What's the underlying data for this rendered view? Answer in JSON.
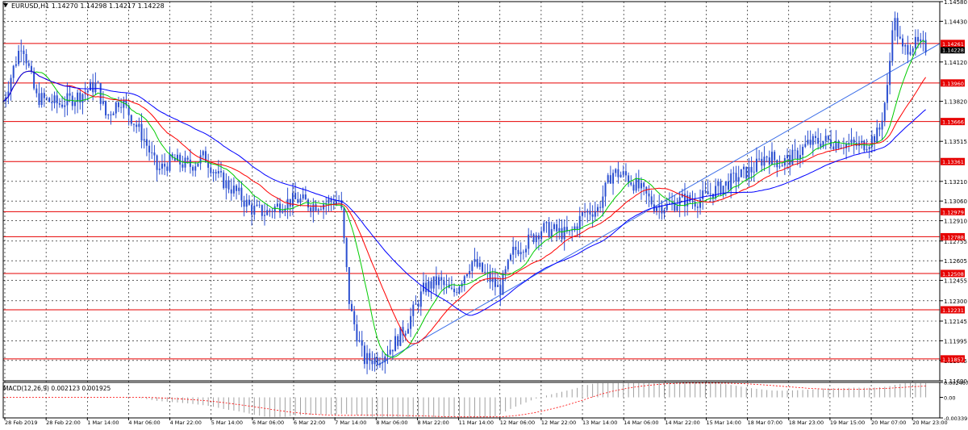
{
  "window": {
    "symbol_line": "EURUSD,H1  1.14270 1.14298 1.14217 1.14228"
  },
  "chart_data": {
    "type": "candlestick",
    "symbol": "EURUSD",
    "timeframe": "H1",
    "ohlc_readout": {
      "open": 1.1427,
      "high": 1.14298,
      "low": 1.14217,
      "close": 1.14228
    },
    "price_ticks": [
      "1.14580",
      "1.14430",
      "1.14120",
      "1.13820",
      "1.13515",
      "1.13210",
      "1.13060",
      "1.12910",
      "1.12755",
      "1.12605",
      "1.12455",
      "1.12300",
      "1.12145",
      "1.11995",
      "1.11845",
      "1.11690"
    ],
    "ylim": [
      1.1169,
      1.1458
    ],
    "time_labels": [
      "28 Feb 2019",
      "28 Feb 22:00",
      "1 Mar 14:00",
      "4 Mar 06:00",
      "4 Mar 22:00",
      "5 Mar 14:00",
      "6 Mar 06:00",
      "6 Mar 22:00",
      "7 Mar 14:00",
      "8 Mar 06:00",
      "8 Mar 22:00",
      "11 Mar 14:00",
      "12 Mar 06:00",
      "12 Mar 22:00",
      "13 Mar 14:00",
      "14 Mar 06:00",
      "14 Mar 22:00",
      "15 Mar 14:00",
      "18 Mar 07:00",
      "18 Mar 23:00",
      "19 Mar 15:00",
      "20 Mar 07:00",
      "20 Mar 23:00"
    ],
    "horizontal_levels": [
      {
        "value": 1.14261,
        "label": "1.14261"
      },
      {
        "value": 1.1396,
        "label": "1.13960"
      },
      {
        "value": 1.13666,
        "label": "1.13666"
      },
      {
        "value": 1.13361,
        "label": "1.13361"
      },
      {
        "value": 1.12979,
        "label": "1.12979"
      },
      {
        "value": 1.12788,
        "label": "1.12788"
      },
      {
        "value": 1.12508,
        "label": "1.12508"
      },
      {
        "value": 1.12231,
        "label": "1.12231"
      },
      {
        "value": 1.11857,
        "label": "1.11857"
      }
    ],
    "current_price_label": "1.14228",
    "trendline": [
      {
        "t": 0.4,
        "price": 1.1181
      },
      {
        "t": 1.0,
        "price": 1.1426
      }
    ],
    "price_path": [
      [
        0.0,
        1.1382
      ],
      [
        0.02,
        1.1428
      ],
      [
        0.035,
        1.1385
      ],
      [
        0.06,
        1.138
      ],
      [
        0.08,
        1.1386
      ],
      [
        0.1,
        1.1395
      ],
      [
        0.11,
        1.137
      ],
      [
        0.125,
        1.1384
      ],
      [
        0.15,
        1.1354
      ],
      [
        0.165,
        1.1329
      ],
      [
        0.18,
        1.1337
      ],
      [
        0.2,
        1.1333
      ],
      [
        0.215,
        1.134
      ],
      [
        0.23,
        1.1324
      ],
      [
        0.25,
        1.1312
      ],
      [
        0.265,
        1.13
      ],
      [
        0.28,
        1.1297
      ],
      [
        0.3,
        1.1305
      ],
      [
        0.315,
        1.1307
      ],
      [
        0.33,
        1.1303
      ],
      [
        0.345,
        1.1305
      ],
      [
        0.36,
        1.1307
      ],
      [
        0.37,
        1.1225
      ],
      [
        0.385,
        1.1185
      ],
      [
        0.4,
        1.1186
      ],
      [
        0.415,
        1.1195
      ],
      [
        0.43,
        1.121
      ],
      [
        0.45,
        1.124
      ],
      [
        0.465,
        1.1245
      ],
      [
        0.48,
        1.1235
      ],
      [
        0.5,
        1.126
      ],
      [
        0.515,
        1.125
      ],
      [
        0.53,
        1.1238
      ],
      [
        0.545,
        1.1268
      ],
      [
        0.56,
        1.1275
      ],
      [
        0.575,
        1.1285
      ],
      [
        0.59,
        1.1283
      ],
      [
        0.605,
        1.128
      ],
      [
        0.62,
        1.1297
      ],
      [
        0.635,
        1.13
      ],
      [
        0.65,
        1.1328
      ],
      [
        0.665,
        1.1325
      ],
      [
        0.68,
        1.1315
      ],
      [
        0.695,
        1.1303
      ],
      [
        0.71,
        1.1302
      ],
      [
        0.725,
        1.1307
      ],
      [
        0.74,
        1.1306
      ],
      [
        0.755,
        1.1312
      ],
      [
        0.77,
        1.1318
      ],
      [
        0.785,
        1.1325
      ],
      [
        0.8,
        1.133
      ],
      [
        0.815,
        1.1341
      ],
      [
        0.83,
        1.1335
      ],
      [
        0.845,
        1.134
      ],
      [
        0.86,
        1.135
      ],
      [
        0.875,
        1.1352
      ],
      [
        0.89,
        1.1351
      ],
      [
        0.905,
        1.1349
      ],
      [
        0.915,
        1.1348
      ],
      [
        0.925,
        1.1352
      ],
      [
        0.935,
        1.1358
      ],
      [
        0.945,
        1.1395
      ],
      [
        0.95,
        1.1448
      ],
      [
        0.96,
        1.142
      ],
      [
        0.97,
        1.1426
      ],
      [
        0.985,
        1.1423
      ]
    ],
    "ma_series": [
      {
        "color": "#00cc00",
        "smoothing": 3
      },
      {
        "color": "#ff0000",
        "smoothing": 6
      },
      {
        "color": "#0000ff",
        "smoothing": 12
      }
    ],
    "colors": {
      "candles": "#2b4fd0",
      "levels": "#e60000",
      "trendline": "#3b6ee8",
      "grid": "#000000"
    },
    "macd": {
      "label": "MACD(12,26,9) 0.002123 0.001925",
      "value": 0.002123,
      "signal": 0.001925,
      "ticks": [
        "0.002467",
        "0.00",
        "-0.00339"
      ],
      "ylim": [
        -0.00339,
        0.002467
      ],
      "histogram_color": "#a0a0a0",
      "signal_color": "#ff0000",
      "histogram_style": "vertical bars",
      "signal_style": "dashed"
    }
  }
}
